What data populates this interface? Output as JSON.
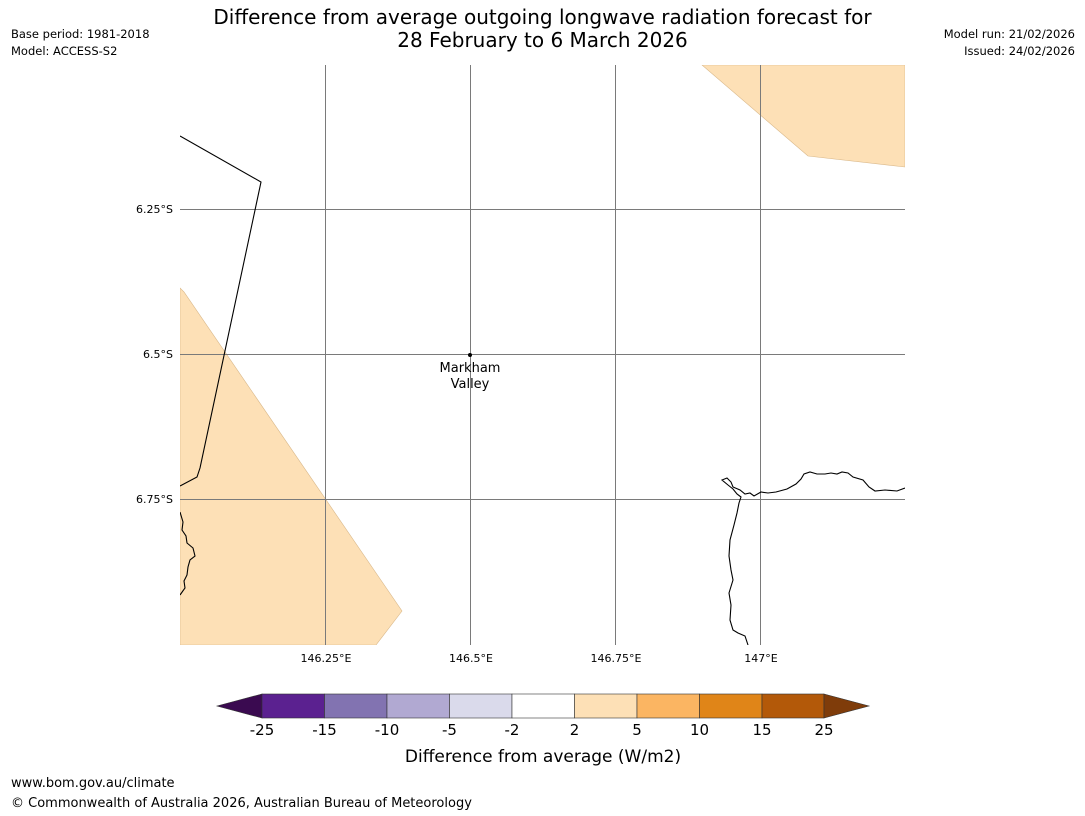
{
  "header": {
    "title_line1": "Difference from average outgoing longwave radiation forecast for",
    "title_line2": "28 February to 6 March 2026",
    "base_period": "Base period: 1981-2018",
    "model": "Model: ACCESS-S2",
    "model_run": "Model run: 21/02/2026",
    "issued": "Issued: 24/02/2026"
  },
  "map": {
    "latitude_labels": [
      "6.25°S",
      "6.5°S",
      "6.75°S"
    ],
    "longitude_labels": [
      "146.25°E",
      "146.5°E",
      "146.75°E",
      "147°E"
    ],
    "place": {
      "name_line1": "Markham",
      "name_line2": "Valley",
      "lat": -6.5,
      "lon": 146.5
    },
    "anomaly_fill_color": "#fde0b6",
    "anomaly_category": "2 to 5"
  },
  "colorbar": {
    "label": "Difference from average (W/m2)",
    "ticks": [
      "-25",
      "-15",
      "-10",
      "-5",
      "-2",
      "2",
      "5",
      "10",
      "15",
      "25"
    ],
    "colors": [
      "#3a0a50",
      "#5b2190",
      "#8273b1",
      "#b1a9d2",
      "#dadaeb",
      "#ffffff",
      "#fde0b6",
      "#fbb562",
      "#e08518",
      "#b35909",
      "#7f3c0a"
    ]
  },
  "footer": {
    "url": "www.bom.gov.au/climate",
    "copyright": "© Commonwealth of Australia 2026, Australian Bureau of Meteorology"
  }
}
